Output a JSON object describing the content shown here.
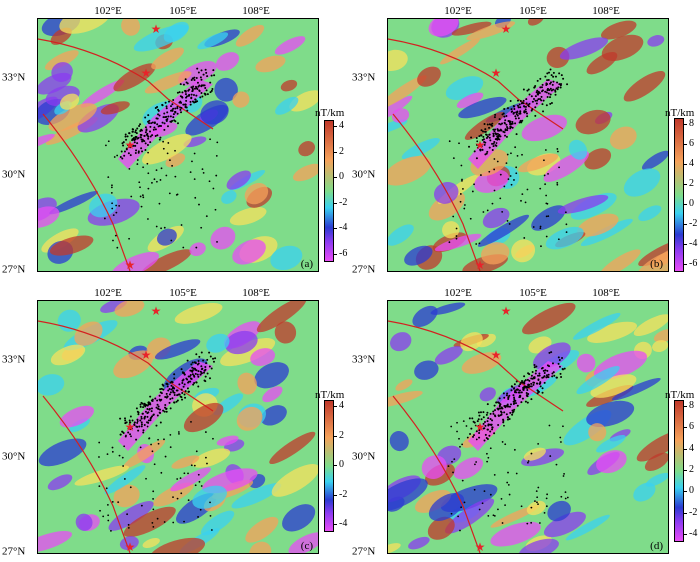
{
  "panels": [
    {
      "letter": "(a)",
      "colorbar": {
        "unit": "nT/km",
        "ticks": [
          "4",
          "2",
          "0",
          "-2",
          "-4",
          "-6"
        ]
      }
    },
    {
      "letter": "(b)",
      "colorbar": {
        "unit": "nT/km",
        "ticks": [
          "8",
          "6",
          "4",
          "2",
          "0",
          "-2",
          "-4",
          "-6"
        ]
      }
    },
    {
      "letter": "(c)",
      "colorbar": {
        "unit": "nT/km",
        "ticks": [
          "4",
          "2",
          "0",
          "-2",
          "-4"
        ]
      }
    },
    {
      "letter": "(d)",
      "colorbar": {
        "unit": "nT/km",
        "ticks": [
          "8",
          "6",
          "4",
          "2",
          "0",
          "-2",
          "-4"
        ]
      }
    }
  ],
  "lon_labels": [
    "102°E",
    "105°E",
    "108°E"
  ],
  "lat_labels": [
    "33°N",
    "30°N",
    "27°N"
  ],
  "colors": {
    "colorbar_top": "#c0392b",
    "colorbar_mid_high": "#f5a25a",
    "colorbar_mid": "#7fdc8a",
    "colorbar_low": "#2b3bd1",
    "colorbar_bottom": "#e84cf5",
    "fault_line": "#d42020",
    "star": "#e8232a",
    "seismicity": "#000000"
  },
  "icons": {
    "epicenter": "star-icon"
  }
}
